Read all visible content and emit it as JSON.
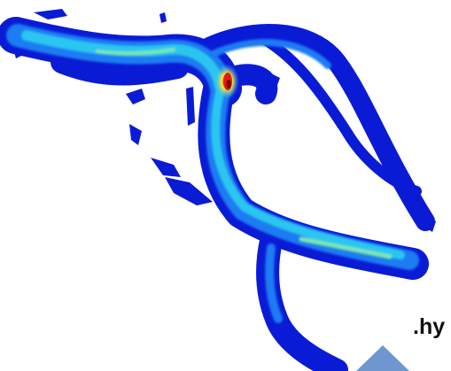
{
  "image": {
    "subject": "hydrodynamic-river-velocity-plot",
    "colors": {
      "background": "#ffffff",
      "low": "#0a1bd6",
      "mid_low": "#1f7cf2",
      "mid": "#29c6f0",
      "mid_high": "#7be8b0",
      "high": "#ffe23a",
      "peak": "#e21a12"
    }
  },
  "caption": {
    "text": ".hy"
  },
  "decoration": {
    "color": "#6f96cf",
    "icon": "diamond-shape"
  }
}
